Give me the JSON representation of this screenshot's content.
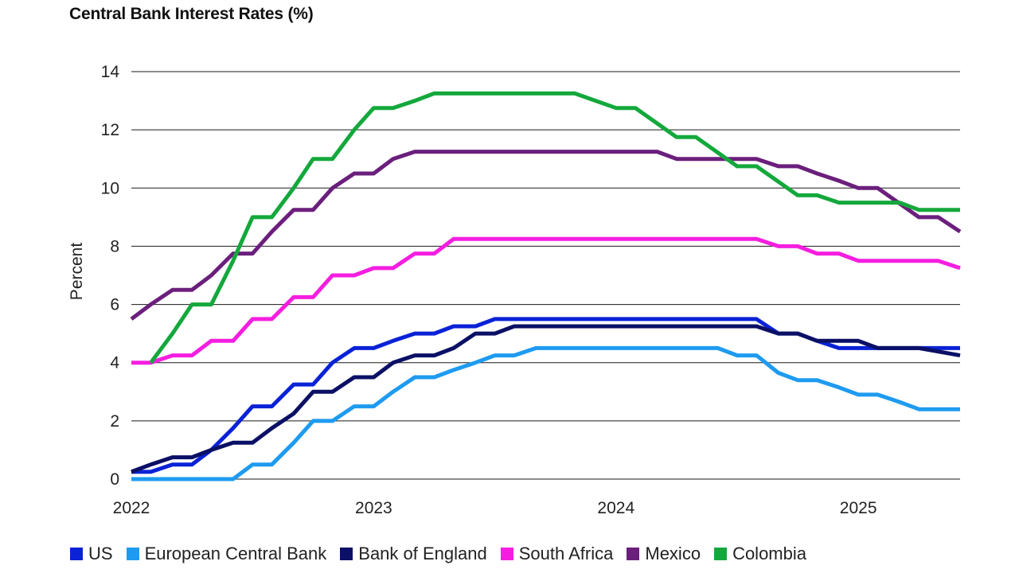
{
  "chart_data": {
    "type": "line",
    "title": "Central Bank Interest Rates (%)",
    "xlabel": "",
    "ylabel": "Percent",
    "xlim": [
      2022.0,
      2025.42
    ],
    "ylim": [
      0,
      14
    ],
    "yticks": [
      0,
      2,
      4,
      6,
      8,
      10,
      12,
      14
    ],
    "xticks": [
      2022,
      2023,
      2024,
      2025
    ],
    "xtick_labels": [
      "2022",
      "2023",
      "2024",
      "2025"
    ],
    "grid": "horizontal",
    "legend_position": "bottom",
    "series": [
      {
        "name": "US",
        "color": "#0a22d6",
        "points": [
          [
            2022.0,
            0.25
          ],
          [
            2022.08,
            0.25
          ],
          [
            2022.17,
            0.5
          ],
          [
            2022.25,
            0.5
          ],
          [
            2022.33,
            1.0
          ],
          [
            2022.42,
            1.75
          ],
          [
            2022.5,
            2.5
          ],
          [
            2022.58,
            2.5
          ],
          [
            2022.67,
            3.25
          ],
          [
            2022.75,
            3.25
          ],
          [
            2022.83,
            4.0
          ],
          [
            2022.92,
            4.5
          ],
          [
            2023.0,
            4.5
          ],
          [
            2023.08,
            4.75
          ],
          [
            2023.17,
            5.0
          ],
          [
            2023.25,
            5.0
          ],
          [
            2023.33,
            5.25
          ],
          [
            2023.42,
            5.25
          ],
          [
            2023.5,
            5.5
          ],
          [
            2024.58,
            5.5
          ],
          [
            2024.67,
            5.0
          ],
          [
            2024.75,
            5.0
          ],
          [
            2024.83,
            4.75
          ],
          [
            2024.92,
            4.5
          ],
          [
            2025.0,
            4.5
          ],
          [
            2025.42,
            4.5
          ]
        ]
      },
      {
        "name": "European Central Bank",
        "color": "#1e9bf0",
        "points": [
          [
            2022.0,
            0.0
          ],
          [
            2022.42,
            0.0
          ],
          [
            2022.5,
            0.5
          ],
          [
            2022.58,
            0.5
          ],
          [
            2022.67,
            1.25
          ],
          [
            2022.75,
            2.0
          ],
          [
            2022.83,
            2.0
          ],
          [
            2022.92,
            2.5
          ],
          [
            2023.0,
            2.5
          ],
          [
            2023.08,
            3.0
          ],
          [
            2023.17,
            3.5
          ],
          [
            2023.25,
            3.5
          ],
          [
            2023.33,
            3.75
          ],
          [
            2023.42,
            4.0
          ],
          [
            2023.5,
            4.25
          ],
          [
            2023.58,
            4.25
          ],
          [
            2023.67,
            4.5
          ],
          [
            2024.33,
            4.5
          ],
          [
            2024.42,
            4.5
          ],
          [
            2024.5,
            4.25
          ],
          [
            2024.58,
            4.25
          ],
          [
            2024.67,
            3.65
          ],
          [
            2024.75,
            3.4
          ],
          [
            2024.83,
            3.4
          ],
          [
            2024.92,
            3.15
          ],
          [
            2025.0,
            2.9
          ],
          [
            2025.08,
            2.9
          ],
          [
            2025.17,
            2.65
          ],
          [
            2025.25,
            2.4
          ],
          [
            2025.42,
            2.4
          ]
        ]
      },
      {
        "name": "Bank of England",
        "color": "#0b1066",
        "points": [
          [
            2022.0,
            0.25
          ],
          [
            2022.08,
            0.5
          ],
          [
            2022.17,
            0.75
          ],
          [
            2022.25,
            0.75
          ],
          [
            2022.33,
            1.0
          ],
          [
            2022.42,
            1.25
          ],
          [
            2022.5,
            1.25
          ],
          [
            2022.58,
            1.75
          ],
          [
            2022.67,
            2.25
          ],
          [
            2022.75,
            3.0
          ],
          [
            2022.83,
            3.0
          ],
          [
            2022.92,
            3.5
          ],
          [
            2023.0,
            3.5
          ],
          [
            2023.08,
            4.0
          ],
          [
            2023.17,
            4.25
          ],
          [
            2023.25,
            4.25
          ],
          [
            2023.33,
            4.5
          ],
          [
            2023.42,
            5.0
          ],
          [
            2023.5,
            5.0
          ],
          [
            2023.58,
            5.25
          ],
          [
            2024.5,
            5.25
          ],
          [
            2024.58,
            5.25
          ],
          [
            2024.67,
            5.0
          ],
          [
            2024.75,
            5.0
          ],
          [
            2024.83,
            4.75
          ],
          [
            2024.92,
            4.75
          ],
          [
            2025.0,
            4.75
          ],
          [
            2025.08,
            4.5
          ],
          [
            2025.25,
            4.5
          ],
          [
            2025.42,
            4.25
          ]
        ]
      },
      {
        "name": "South Africa",
        "color": "#f51ee0",
        "points": [
          [
            2022.0,
            4.0
          ],
          [
            2022.08,
            4.0
          ],
          [
            2022.17,
            4.25
          ],
          [
            2022.25,
            4.25
          ],
          [
            2022.33,
            4.75
          ],
          [
            2022.42,
            4.75
          ],
          [
            2022.5,
            5.5
          ],
          [
            2022.58,
            5.5
          ],
          [
            2022.67,
            6.25
          ],
          [
            2022.75,
            6.25
          ],
          [
            2022.83,
            7.0
          ],
          [
            2022.92,
            7.0
          ],
          [
            2023.0,
            7.25
          ],
          [
            2023.08,
            7.25
          ],
          [
            2023.17,
            7.75
          ],
          [
            2023.25,
            7.75
          ],
          [
            2023.33,
            8.25
          ],
          [
            2024.58,
            8.25
          ],
          [
            2024.67,
            8.0
          ],
          [
            2024.75,
            8.0
          ],
          [
            2024.83,
            7.75
          ],
          [
            2024.92,
            7.75
          ],
          [
            2025.0,
            7.5
          ],
          [
            2025.33,
            7.5
          ],
          [
            2025.42,
            7.25
          ]
        ]
      },
      {
        "name": "Mexico",
        "color": "#6b1f7c",
        "points": [
          [
            2022.0,
            5.5
          ],
          [
            2022.08,
            6.0
          ],
          [
            2022.17,
            6.5
          ],
          [
            2022.25,
            6.5
          ],
          [
            2022.33,
            7.0
          ],
          [
            2022.42,
            7.75
          ],
          [
            2022.5,
            7.75
          ],
          [
            2022.58,
            8.5
          ],
          [
            2022.67,
            9.25
          ],
          [
            2022.75,
            9.25
          ],
          [
            2022.83,
            10.0
          ],
          [
            2022.92,
            10.5
          ],
          [
            2023.0,
            10.5
          ],
          [
            2023.08,
            11.0
          ],
          [
            2023.17,
            11.25
          ],
          [
            2024.17,
            11.25
          ],
          [
            2024.25,
            11.0
          ],
          [
            2024.58,
            11.0
          ],
          [
            2024.67,
            10.75
          ],
          [
            2024.75,
            10.75
          ],
          [
            2024.83,
            10.5
          ],
          [
            2024.92,
            10.25
          ],
          [
            2025.0,
            10.0
          ],
          [
            2025.08,
            10.0
          ],
          [
            2025.25,
            9.0
          ],
          [
            2025.33,
            9.0
          ],
          [
            2025.42,
            8.5
          ]
        ]
      },
      {
        "name": "Colombia",
        "color": "#14a83c",
        "points": [
          [
            2022.08,
            4.0
          ],
          [
            2022.17,
            5.0
          ],
          [
            2022.25,
            6.0
          ],
          [
            2022.33,
            6.0
          ],
          [
            2022.42,
            7.5
          ],
          [
            2022.5,
            9.0
          ],
          [
            2022.58,
            9.0
          ],
          [
            2022.67,
            10.0
          ],
          [
            2022.75,
            11.0
          ],
          [
            2022.83,
            11.0
          ],
          [
            2022.92,
            12.0
          ],
          [
            2023.0,
            12.75
          ],
          [
            2023.08,
            12.75
          ],
          [
            2023.17,
            13.0
          ],
          [
            2023.25,
            13.25
          ],
          [
            2023.83,
            13.25
          ],
          [
            2024.0,
            12.75
          ],
          [
            2024.08,
            12.75
          ],
          [
            2024.25,
            11.75
          ],
          [
            2024.33,
            11.75
          ],
          [
            2024.5,
            10.75
          ],
          [
            2024.58,
            10.75
          ],
          [
            2024.75,
            9.75
          ],
          [
            2024.83,
            9.75
          ],
          [
            2024.92,
            9.5
          ],
          [
            2025.17,
            9.5
          ],
          [
            2025.25,
            9.25
          ],
          [
            2025.42,
            9.25
          ]
        ]
      }
    ]
  }
}
